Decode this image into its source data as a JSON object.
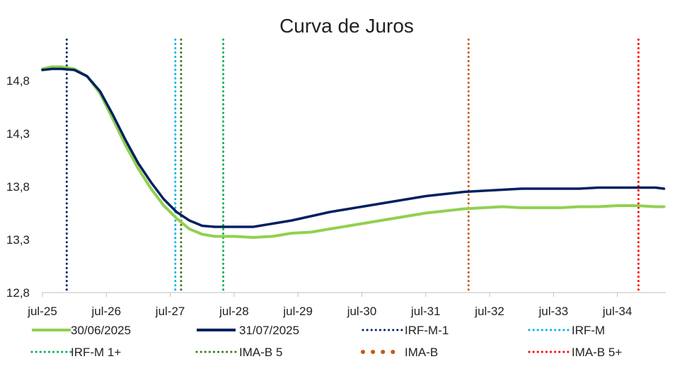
{
  "chart_data": {
    "type": "line",
    "title": "Curva de Juros",
    "xlabel": "",
    "ylabel": "",
    "x_tick_labels": [
      "jul-25",
      "jul-26",
      "jul-27",
      "jul-28",
      "jul-29",
      "jul-30",
      "jul-31",
      "jul-32",
      "jul-33",
      "jul-34"
    ],
    "y_tick_labels": [
      "12,8",
      "13,3",
      "13,8",
      "14,3",
      "14,8"
    ],
    "ylim": [
      12.8,
      15.8
    ],
    "xlim_years": [
      0,
      9.73
    ],
    "grid": false,
    "legend_position": "bottom",
    "series": [
      {
        "name": "30/06/2025",
        "color": "#92d050",
        "style": "solid",
        "points": [
          [
            0,
            14.91
          ],
          [
            0.15,
            14.93
          ],
          [
            0.3,
            14.93
          ],
          [
            0.5,
            14.91
          ],
          [
            0.7,
            14.84
          ],
          [
            0.9,
            14.68
          ],
          [
            1.1,
            14.44
          ],
          [
            1.3,
            14.19
          ],
          [
            1.5,
            13.97
          ],
          [
            1.7,
            13.78
          ],
          [
            1.9,
            13.62
          ],
          [
            2.1,
            13.5
          ],
          [
            2.3,
            13.4
          ],
          [
            2.5,
            13.35
          ],
          [
            2.7,
            13.33
          ],
          [
            3.0,
            13.33
          ],
          [
            3.3,
            13.32
          ],
          [
            3.6,
            13.33
          ],
          [
            3.9,
            13.36
          ],
          [
            4.2,
            13.37
          ],
          [
            4.5,
            13.4
          ],
          [
            4.8,
            13.43
          ],
          [
            5.1,
            13.46
          ],
          [
            5.4,
            13.49
          ],
          [
            5.7,
            13.52
          ],
          [
            6.0,
            13.55
          ],
          [
            6.3,
            13.57
          ],
          [
            6.6,
            13.59
          ],
          [
            6.9,
            13.6
          ],
          [
            7.2,
            13.61
          ],
          [
            7.5,
            13.6
          ],
          [
            7.8,
            13.6
          ],
          [
            8.1,
            13.6
          ],
          [
            8.4,
            13.61
          ],
          [
            8.7,
            13.61
          ],
          [
            9.0,
            13.62
          ],
          [
            9.3,
            13.62
          ],
          [
            9.6,
            13.61
          ],
          [
            9.73,
            13.61
          ]
        ]
      },
      {
        "name": "31/07/2025",
        "color": "#002060",
        "style": "solid",
        "points": [
          [
            0,
            14.9
          ],
          [
            0.15,
            14.91
          ],
          [
            0.3,
            14.91
          ],
          [
            0.5,
            14.9
          ],
          [
            0.7,
            14.84
          ],
          [
            0.9,
            14.7
          ],
          [
            1.1,
            14.48
          ],
          [
            1.3,
            14.24
          ],
          [
            1.5,
            14.02
          ],
          [
            1.7,
            13.84
          ],
          [
            1.9,
            13.68
          ],
          [
            2.1,
            13.56
          ],
          [
            2.3,
            13.48
          ],
          [
            2.5,
            13.43
          ],
          [
            2.7,
            13.42
          ],
          [
            3.0,
            13.42
          ],
          [
            3.3,
            13.42
          ],
          [
            3.6,
            13.45
          ],
          [
            3.9,
            13.48
          ],
          [
            4.2,
            13.52
          ],
          [
            4.5,
            13.56
          ],
          [
            4.8,
            13.59
          ],
          [
            5.1,
            13.62
          ],
          [
            5.4,
            13.65
          ],
          [
            5.7,
            13.68
          ],
          [
            6.0,
            13.71
          ],
          [
            6.3,
            13.73
          ],
          [
            6.6,
            13.75
          ],
          [
            6.9,
            13.76
          ],
          [
            7.2,
            13.77
          ],
          [
            7.5,
            13.78
          ],
          [
            7.8,
            13.78
          ],
          [
            8.1,
            13.78
          ],
          [
            8.4,
            13.78
          ],
          [
            8.7,
            13.79
          ],
          [
            9.0,
            13.79
          ],
          [
            9.3,
            13.79
          ],
          [
            9.6,
            13.79
          ],
          [
            9.73,
            13.78
          ]
        ]
      }
    ],
    "vertical_markers": [
      {
        "name": "IRF-M-1",
        "x": 0.38,
        "color": "#002060"
      },
      {
        "name": "IRF-M",
        "x": 2.08,
        "color": "#00b0f0"
      },
      {
        "name": "IRF-M 1+",
        "x": 2.83,
        "color": "#00b050"
      },
      {
        "name": "IMA-B 5",
        "x": 2.17,
        "color": "#38761d"
      },
      {
        "name": "IMA-B",
        "x": 6.67,
        "color": "#c55a11"
      },
      {
        "name": "IMA-B 5+",
        "x": 9.33,
        "color": "#ff0000"
      }
    ],
    "legend": [
      {
        "label": "30/06/2025",
        "color": "#92d050",
        "kind": "solid-light"
      },
      {
        "label": "31/07/2025",
        "color": "#002060",
        "kind": "solid"
      },
      {
        "label": "IRF-M-1",
        "color": "#002060",
        "kind": "dots"
      },
      {
        "label": "IRF-M",
        "color": "#00b0f0",
        "kind": "dots"
      },
      {
        "label": "IRF-M 1+",
        "color": "#00b050",
        "kind": "dots"
      },
      {
        "label": "IMA-B 5",
        "color": "#38761d",
        "kind": "dots"
      },
      {
        "label": "IMA-B",
        "color": "#c55a11",
        "kind": "bigdots"
      },
      {
        "label": "IMA-B 5+",
        "color": "#ff0000",
        "kind": "dots"
      }
    ]
  }
}
